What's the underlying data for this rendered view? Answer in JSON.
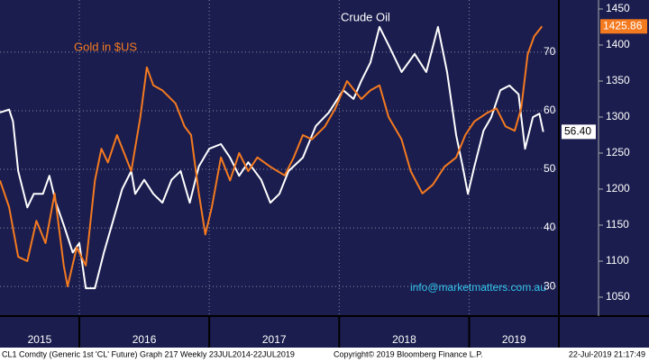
{
  "chart_data": {
    "type": "line",
    "annotations": {
      "oil": "Crude Oil",
      "gold": "Gold in $US",
      "contact": "info@marketmatters.com.au"
    },
    "xlim": [
      2015.39,
      2019.69
    ],
    "xticks": [
      2016,
      2017,
      2018,
      2019
    ],
    "year_labels": [
      "2015",
      "2016",
      "2017",
      "2018",
      "2019"
    ],
    "ylim": [
      25.1,
      78.9
    ],
    "yticks": [
      30,
      40,
      50,
      60,
      70
    ],
    "y2lim": [
      1025,
      1462.5
    ],
    "y2ticks": [
      1050,
      1100,
      1150,
      1200,
      1250,
      1300,
      1350,
      1400,
      1450
    ],
    "grid": true,
    "series": [
      {
        "name": "Crude Oil",
        "color": "#ffffff",
        "last_label": "56.40",
        "x": [
          2015.39,
          2015.46,
          2015.49,
          2015.53,
          2015.6,
          2015.65,
          2015.72,
          2015.77,
          2015.82,
          2015.88,
          2015.95,
          2016.0,
          2016.05,
          2016.12,
          2016.19,
          2016.26,
          2016.33,
          2016.4,
          2016.43,
          2016.5,
          2016.57,
          2016.64,
          2016.71,
          2016.78,
          2016.85,
          2016.92,
          2017.0,
          2017.09,
          2017.16,
          2017.23,
          2017.3,
          2017.4,
          2017.47,
          2017.54,
          2017.61,
          2017.72,
          2017.82,
          2017.92,
          2018.03,
          2018.11,
          2018.17,
          2018.24,
          2018.31,
          2018.38,
          2018.48,
          2018.58,
          2018.67,
          2018.76,
          2018.83,
          2018.9,
          2018.95,
          2018.99,
          2019.04,
          2019.11,
          2019.17,
          2019.24,
          2019.31,
          2019.38,
          2019.43,
          2019.49,
          2019.54,
          2019.57
        ],
        "values": [
          59.7,
          60.2,
          58.2,
          49.7,
          43.5,
          45.8,
          45.8,
          48.9,
          44.3,
          40.5,
          35.8,
          37.4,
          29.7,
          29.7,
          35.8,
          41.2,
          46.6,
          49.7,
          45.8,
          48.2,
          45.8,
          44.3,
          48.2,
          49.7,
          44.3,
          50.5,
          53.5,
          54.3,
          52,
          48.9,
          51.2,
          48.2,
          44.3,
          45.8,
          49.7,
          52,
          57.4,
          59.7,
          63.5,
          62,
          65.1,
          68.2,
          74.3,
          71.2,
          66.6,
          69.7,
          66.6,
          74.3,
          66.6,
          55.8,
          50.5,
          45.8,
          50.5,
          56.6,
          58.9,
          63.5,
          64.3,
          62.8,
          53.5,
          58.9,
          59.5,
          56.4
        ]
      },
      {
        "name": "Gold in $US",
        "color": "#f47a20",
        "axis": "y2",
        "last_label": "1425.86",
        "x": [
          2015.39,
          2015.46,
          2015.53,
          2015.6,
          2015.67,
          2015.74,
          2015.81,
          2015.88,
          2015.91,
          2015.98,
          2016.05,
          2016.12,
          2016.17,
          2016.22,
          2016.29,
          2016.4,
          2016.47,
          2016.52,
          2016.57,
          2016.64,
          2016.74,
          2016.81,
          2016.86,
          2016.92,
          2016.97,
          2017.02,
          2017.09,
          2017.16,
          2017.23,
          2017.3,
          2017.37,
          2017.47,
          2017.58,
          2017.65,
          2017.72,
          2017.79,
          2017.89,
          2017.97,
          2018.06,
          2018.17,
          2018.24,
          2018.31,
          2018.38,
          2018.48,
          2018.55,
          2018.64,
          2018.72,
          2018.81,
          2018.9,
          2018.97,
          2019.04,
          2019.14,
          2019.21,
          2019.28,
          2019.35,
          2019.4,
          2019.45,
          2019.5,
          2019.56
        ],
        "values": [
          1212,
          1175,
          1106,
          1100,
          1156,
          1125,
          1194,
          1094,
          1065,
          1119,
          1094,
          1212,
          1256,
          1237,
          1275,
          1225,
          1300,
          1369,
          1344,
          1337,
          1319,
          1287,
          1275,
          1194,
          1137,
          1175,
          1244,
          1212,
          1250,
          1225,
          1244,
          1231,
          1219,
          1244,
          1275,
          1269,
          1287,
          1312,
          1350,
          1325,
          1337,
          1344,
          1300,
          1269,
          1225,
          1194,
          1206,
          1231,
          1244,
          1275,
          1294,
          1306,
          1312,
          1287,
          1281,
          1312,
          1387,
          1412,
          1425.86
        ]
      }
    ]
  },
  "footer": {
    "left": "CL1 Comdty (Generic 1st 'CL' Future) Graph 217  Weekly 23JUL2014-22JUL2019",
    "center": "Copyright© 2019 Bloomberg Finance L.P.",
    "right": "22-Jul-2019 21:17:49"
  }
}
